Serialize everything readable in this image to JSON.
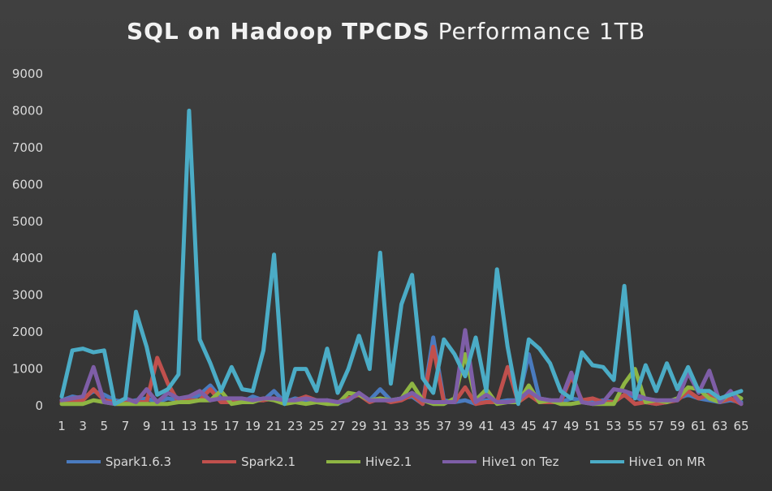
{
  "chart_data": {
    "type": "line",
    "title": "SQL on Hadoop TPCDS Performance 1TB",
    "title_bold": "SQL on Hadoop TPCDS",
    "title_rest": "Performance 1TB",
    "ylim": [
      0,
      9000
    ],
    "yticks": [
      0,
      1000,
      2000,
      3000,
      4000,
      5000,
      6000,
      7000,
      8000,
      9000
    ],
    "x": [
      1,
      2,
      3,
      4,
      5,
      6,
      7,
      8,
      9,
      10,
      11,
      12,
      13,
      14,
      15,
      16,
      17,
      18,
      19,
      20,
      21,
      22,
      23,
      24,
      25,
      26,
      27,
      28,
      29,
      30,
      31,
      32,
      33,
      34,
      35,
      36,
      37,
      38,
      39,
      40,
      41,
      42,
      43,
      44,
      45,
      46,
      47,
      48,
      49,
      50,
      51,
      52,
      53,
      54,
      55,
      56,
      57,
      58,
      59,
      60,
      61,
      62,
      63,
      64,
      65
    ],
    "xtick_labels": [
      1,
      3,
      5,
      7,
      9,
      11,
      13,
      15,
      17,
      19,
      21,
      23,
      25,
      27,
      29,
      31,
      33,
      35,
      37,
      39,
      41,
      43,
      45,
      47,
      49,
      51,
      53,
      55,
      57,
      59,
      61,
      63,
      65
    ],
    "grid": false,
    "legend_position": "bottom",
    "series": [
      {
        "name": "Spark1.6.3",
        "color": "#4a7bbf",
        "values": [
          150,
          250,
          200,
          400,
          300,
          150,
          100,
          150,
          200,
          100,
          200,
          150,
          150,
          300,
          550,
          200,
          150,
          100,
          250,
          150,
          400,
          100,
          200,
          150,
          100,
          150,
          50,
          200,
          300,
          150,
          450,
          150,
          200,
          250,
          50,
          1850,
          150,
          100,
          150,
          50,
          150,
          100,
          150,
          150,
          1400,
          200,
          150,
          100,
          200,
          150,
          100,
          150,
          100,
          300,
          250,
          100,
          50,
          100,
          200,
          300,
          200,
          150,
          100,
          150,
          100
        ]
      },
      {
        "name": "Spark2.1",
        "color": "#c0504d",
        "values": [
          100,
          150,
          150,
          450,
          150,
          100,
          100,
          100,
          100,
          1300,
          600,
          100,
          150,
          150,
          450,
          100,
          100,
          100,
          150,
          150,
          200,
          100,
          150,
          250,
          150,
          100,
          100,
          200,
          300,
          100,
          200,
          100,
          150,
          300,
          50,
          1600,
          100,
          100,
          500,
          50,
          100,
          100,
          1050,
          100,
          300,
          100,
          100,
          100,
          800,
          150,
          200,
          100,
          100,
          300,
          50,
          100,
          50,
          100,
          150,
          400,
          200,
          300,
          100,
          200,
          50
        ]
      },
      {
        "name": "Hive2.1",
        "color": "#8eb543",
        "values": [
          50,
          50,
          50,
          150,
          100,
          50,
          50,
          50,
          50,
          50,
          50,
          100,
          100,
          150,
          150,
          400,
          50,
          100,
          100,
          200,
          150,
          50,
          100,
          50,
          100,
          50,
          50,
          350,
          300,
          150,
          200,
          150,
          200,
          600,
          150,
          50,
          50,
          200,
          1400,
          150,
          450,
          50,
          100,
          100,
          550,
          100,
          150,
          50,
          50,
          100,
          50,
          50,
          50,
          600,
          1000,
          100,
          150,
          100,
          200,
          500,
          450,
          200,
          100,
          350,
          200
        ]
      },
      {
        "name": "Hive1 on Tez",
        "color": "#7e5ea7",
        "values": [
          150,
          200,
          250,
          1050,
          100,
          50,
          200,
          100,
          450,
          100,
          350,
          200,
          250,
          400,
          150,
          200,
          200,
          200,
          150,
          200,
          200,
          150,
          150,
          200,
          150,
          150,
          100,
          150,
          350,
          150,
          150,
          150,
          200,
          350,
          150,
          100,
          100,
          100,
          2050,
          100,
          300,
          100,
          100,
          150,
          400,
          200,
          150,
          150,
          900,
          100,
          50,
          100,
          450,
          400,
          300,
          200,
          150,
          150,
          150,
          900,
          350,
          950,
          100,
          400,
          50
        ]
      },
      {
        "name": "Hive1 on MR",
        "color": "#4bacc6",
        "values": [
          250,
          1500,
          1550,
          1450,
          1500,
          50,
          200,
          2550,
          1600,
          300,
          450,
          850,
          8000,
          1800,
          1150,
          400,
          1050,
          450,
          400,
          1500,
          4100,
          50,
          1000,
          1000,
          400,
          1550,
          350,
          1000,
          1900,
          1000,
          4150,
          600,
          2750,
          3550,
          750,
          350,
          1800,
          1400,
          800,
          1850,
          400,
          3700,
          1600,
          50,
          1800,
          1550,
          1150,
          400,
          200,
          1450,
          1100,
          1050,
          700,
          3250,
          200,
          1100,
          400,
          1150,
          450,
          1050,
          400,
          400,
          200,
          300,
          400
        ]
      }
    ]
  }
}
